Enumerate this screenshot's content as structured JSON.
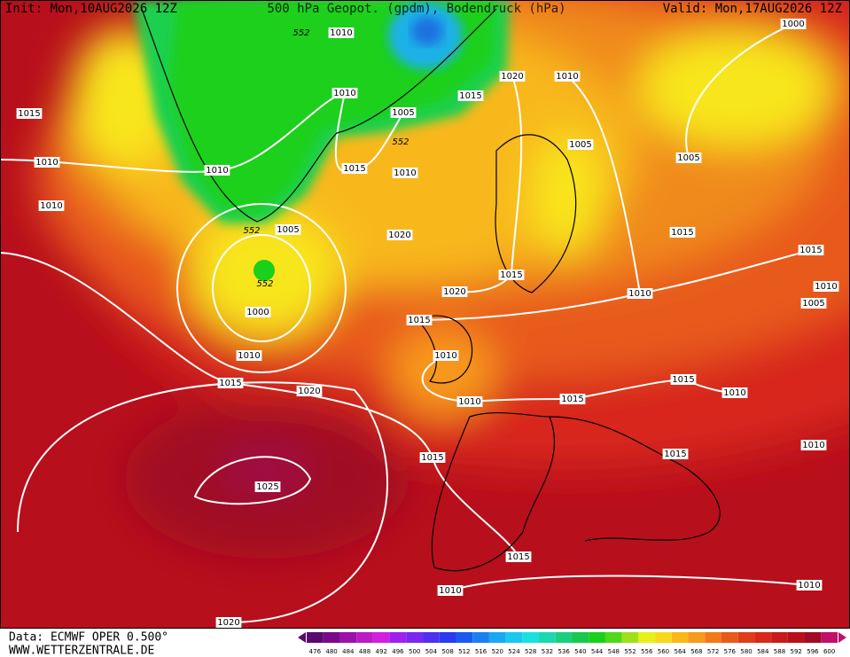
{
  "header": {
    "init": "Init: Mon,10AUG2026 12Z",
    "title": "500 hPa Geopot. (gpdm), Bodendruck (hPa)",
    "valid": "Valid: Mon,17AUG2026 12Z"
  },
  "map": {
    "isobar_labels": [
      1010,
      1000,
      1015,
      1010,
      1010,
      1010,
      1010,
      1005,
      1015,
      1020,
      1010,
      1015,
      1010,
      1005,
      1005,
      1005,
      1020,
      1000,
      1015,
      1015,
      1015,
      1020,
      1010,
      1010,
      1005,
      1015,
      1010,
      1010,
      1015,
      1020,
      1015,
      1010,
      1015,
      1010,
      1010,
      1015,
      1015,
      1025,
      1015,
      1010,
      1010,
      1020
    ],
    "geopotential_labels": [
      552,
      552,
      552,
      552
    ]
  },
  "footer": {
    "source": "Data: ECMWF OPER 0.500°",
    "site": "WWW.WETTERZENTRALE.DE"
  },
  "legend": {
    "levels": [
      476,
      480,
      484,
      488,
      492,
      496,
      500,
      504,
      508,
      512,
      516,
      520,
      524,
      528,
      532,
      536,
      540,
      544,
      548,
      552,
      556,
      560,
      564,
      568,
      572,
      576,
      580,
      584,
      588,
      592,
      596,
      600
    ],
    "colors": [
      "#5a0a6e",
      "#7a0a8a",
      "#9a12a8",
      "#bb1ac4",
      "#d21ee0",
      "#a020f0",
      "#7a28f0",
      "#5030f0",
      "#2a3af0",
      "#1a5af0",
      "#1a80f0",
      "#1aa8f0",
      "#1ac8f0",
      "#1ae0e0",
      "#1ad8b0",
      "#1ad080",
      "#1ac850",
      "#1ad01a",
      "#50d81a",
      "#a0e01a",
      "#e8f01a",
      "#f8d81a",
      "#f8b81a",
      "#f89a1a",
      "#f07a1a",
      "#e85a1a",
      "#e03c1a",
      "#d8281a",
      "#c81a1a",
      "#b80f1c",
      "#a00a22",
      "#c0106a"
    ]
  }
}
